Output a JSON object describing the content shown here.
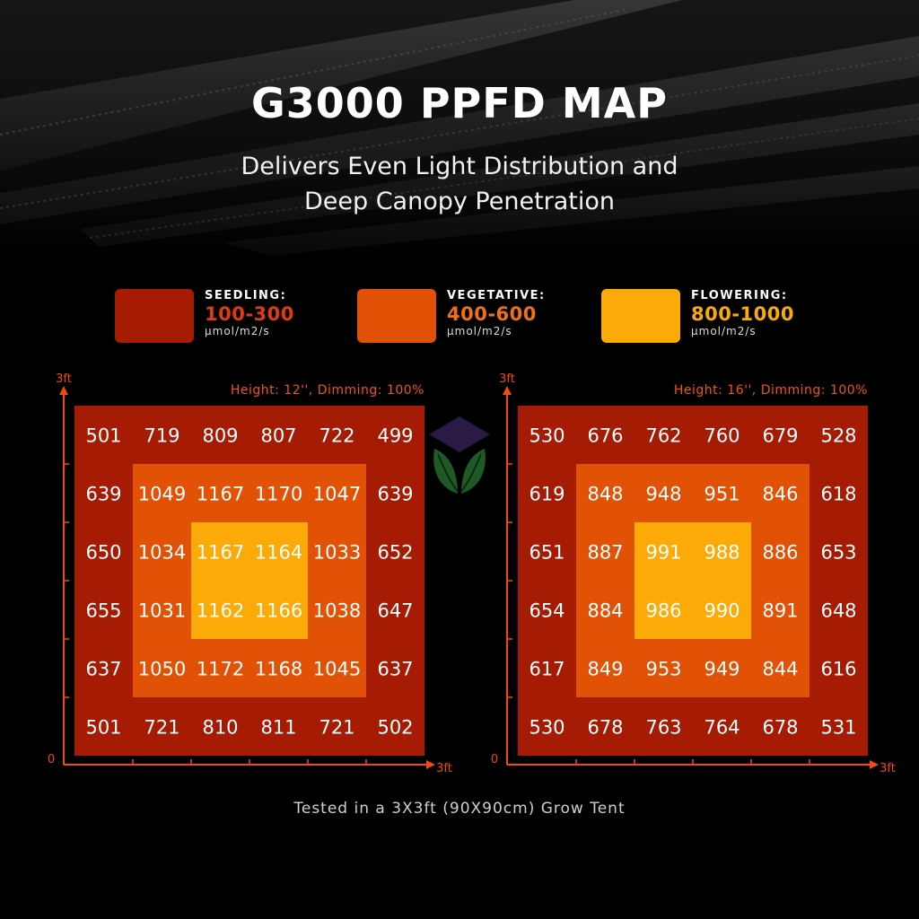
{
  "title": "G3000 PPFD MAP",
  "subtitle_line1": "Delivers Even Light Distribution and",
  "subtitle_line2": "Deep Canopy Penetration",
  "legend": [
    {
      "stage": "SEEDLING:",
      "range": "100-300",
      "unit": "µmol/m2/s",
      "color": "#a51b04",
      "text_color": "#e23a12"
    },
    {
      "stage": "VEGETATIVE:",
      "range": "400-600",
      "unit": "µmol/m2/s",
      "color": "#e15206",
      "text_color": "#f07018"
    },
    {
      "stage": "FLOWERING:",
      "range": "800-1000",
      "unit": "µmol/m2/s",
      "color": "#fbaa08",
      "text_color": "#fbaa08"
    }
  ],
  "footer": "Tested in a 3X3ft (90X90cm) Grow Tent",
  "chart_data": [
    {
      "type": "heatmap",
      "title": "Height: 12'', Dimming: 100%",
      "x_min_label": "0",
      "x_max_label": "3ft",
      "y_max_label": "3ft",
      "values": [
        [
          501,
          719,
          809,
          807,
          722,
          499
        ],
        [
          639,
          1049,
          1167,
          1170,
          1047,
          639
        ],
        [
          650,
          1034,
          1167,
          1164,
          1033,
          652
        ],
        [
          655,
          1031,
          1162,
          1166,
          1038,
          647
        ],
        [
          637,
          1050,
          1172,
          1168,
          1045,
          637
        ],
        [
          501,
          721,
          810,
          811,
          721,
          502
        ]
      ]
    },
    {
      "type": "heatmap",
      "title": "Height: 16'', Dimming: 100%",
      "x_min_label": "0",
      "x_max_label": "3ft",
      "y_max_label": "3ft",
      "values": [
        [
          530,
          676,
          762,
          760,
          679,
          528
        ],
        [
          619,
          848,
          948,
          951,
          846,
          618
        ],
        [
          651,
          887,
          991,
          988,
          886,
          653
        ],
        [
          654,
          884,
          986,
          990,
          891,
          648
        ],
        [
          617,
          849,
          953,
          949,
          844,
          616
        ],
        [
          530,
          678,
          763,
          764,
          678,
          531
        ]
      ]
    }
  ],
  "colors": {
    "outer": "#a51b04",
    "middle": "#e15206",
    "inner": "#fbaa08",
    "axis": "#f04a0c",
    "chart_title": "#f0541a"
  }
}
